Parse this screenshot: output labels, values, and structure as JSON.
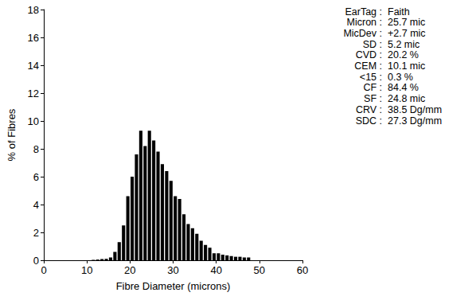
{
  "chart_data": {
    "type": "histogram",
    "x_label": "Fibre Diameter (microns)",
    "y_label": "% of Fibres",
    "bins": [
      0,
      1,
      2,
      3,
      4,
      5,
      6,
      7,
      8,
      9,
      10,
      11,
      12,
      13,
      14,
      15,
      16,
      17,
      18,
      19,
      20,
      21,
      22,
      23,
      24,
      25,
      26,
      27,
      28,
      29,
      30,
      31,
      32,
      33,
      34,
      35,
      36,
      37,
      38,
      39,
      40,
      41,
      42,
      43,
      44,
      45,
      46,
      47,
      48,
      49,
      50,
      51,
      52,
      53,
      54,
      55,
      56,
      57,
      58,
      59,
      60
    ],
    "values": [
      0,
      0,
      0,
      0,
      0,
      0,
      0,
      0,
      0,
      0,
      0,
      0.03,
      0.05,
      0.08,
      0.1,
      0.2,
      0.6,
      1.3,
      2.5,
      4.6,
      6.0,
      7.6,
      9.3,
      8.2,
      9.3,
      8.6,
      7.8,
      6.9,
      6.4,
      5.7,
      4.6,
      4.4,
      3.3,
      2.6,
      2.3,
      1.9,
      1.4,
      1.1,
      0.9,
      0.5,
      0.5,
      0.4,
      0.35,
      0.3,
      0.25,
      0.25,
      0.2,
      0.2,
      0,
      0,
      0,
      0,
      0,
      0,
      0,
      0,
      0,
      0,
      0,
      0
    ],
    "color": "#000000",
    "xlim": [
      0,
      60
    ],
    "xticks": [
      0,
      10,
      20,
      30,
      40,
      50,
      60
    ],
    "ylim": [
      0,
      18
    ],
    "yticks": [
      0,
      2,
      4,
      6,
      8,
      10,
      12,
      14,
      16,
      18
    ],
    "grid": false,
    "annotations": [
      {
        "label": "EarTag :",
        "value": "Faith"
      },
      {
        "label": "Micron :",
        "value": "25.7 mic"
      },
      {
        "label": "MicDev :",
        "value": "+2.7 mic"
      },
      {
        "label": "SD :",
        "value": "5.2 mic"
      },
      {
        "label": "CVD :",
        "value": "20.2 %"
      },
      {
        "label": "CEM :",
        "value": "10.1 mic"
      },
      {
        "label": "<15 :",
        "value": "0.3 %"
      },
      {
        "label": "CF :",
        "value": "84.4 %"
      },
      {
        "label": "SF :",
        "value": "24.8 mic"
      },
      {
        "label": "CRV :",
        "value": "38.5 Dg/mm"
      },
      {
        "label": "SDC :",
        "value": "27.3 Dg/mm"
      }
    ]
  }
}
